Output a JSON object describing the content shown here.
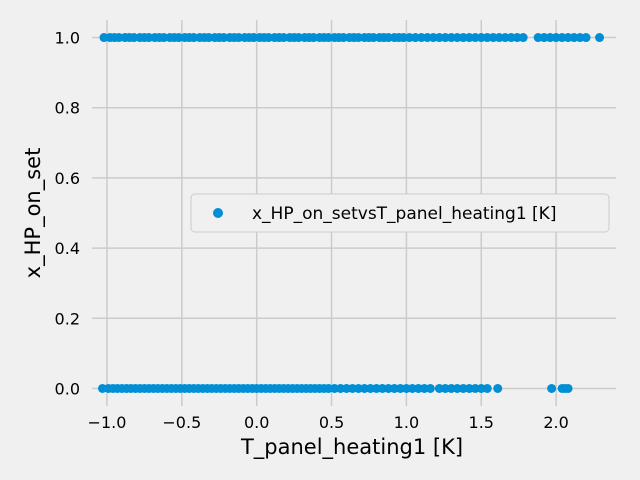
{
  "chart_data": {
    "type": "scatter",
    "xlabel": "T_panel_heating1 [K]",
    "ylabel": "x_HP_on_set",
    "xlim": [
      -1.1,
      2.4
    ],
    "ylim": [
      -0.05,
      1.05
    ],
    "x_ticks": [
      -1.0,
      -0.5,
      0.0,
      0.5,
      1.0,
      1.5,
      2.0
    ],
    "x_tick_labels": [
      "−1.0",
      "−0.5",
      "0.0",
      "0.5",
      "1.0",
      "1.5",
      "2.0"
    ],
    "y_ticks": [
      0.0,
      0.2,
      0.4,
      0.6,
      0.8,
      1.0
    ],
    "y_tick_labels": [
      "0.0",
      "0.2",
      "0.4",
      "0.6",
      "0.8",
      "1.0"
    ],
    "grid": true,
    "legend_position": "center-right",
    "series": [
      {
        "name": "x_HP_on_setvsT_panel_heating1 [K]",
        "color": "#008fd5",
        "points": [
          {
            "x": -1.02,
            "y": 1
          },
          {
            "x": -0.98,
            "y": 1
          },
          {
            "x": -0.95,
            "y": 1
          },
          {
            "x": -0.92,
            "y": 1
          },
          {
            "x": -0.88,
            "y": 1
          },
          {
            "x": -0.85,
            "y": 1
          },
          {
            "x": -0.82,
            "y": 1
          },
          {
            "x": -0.78,
            "y": 1
          },
          {
            "x": -0.75,
            "y": 1
          },
          {
            "x": -0.72,
            "y": 1
          },
          {
            "x": -0.68,
            "y": 1
          },
          {
            "x": -0.65,
            "y": 1
          },
          {
            "x": -0.62,
            "y": 1
          },
          {
            "x": -0.58,
            "y": 1
          },
          {
            "x": -0.55,
            "y": 1
          },
          {
            "x": -0.52,
            "y": 1
          },
          {
            "x": -0.48,
            "y": 1
          },
          {
            "x": -0.45,
            "y": 1
          },
          {
            "x": -0.42,
            "y": 1
          },
          {
            "x": -0.38,
            "y": 1
          },
          {
            "x": -0.35,
            "y": 1
          },
          {
            "x": -0.32,
            "y": 1
          },
          {
            "x": -0.28,
            "y": 1
          },
          {
            "x": -0.25,
            "y": 1
          },
          {
            "x": -0.22,
            "y": 1
          },
          {
            "x": -0.18,
            "y": 1
          },
          {
            "x": -0.15,
            "y": 1
          },
          {
            "x": -0.12,
            "y": 1
          },
          {
            "x": -0.08,
            "y": 1
          },
          {
            "x": -0.05,
            "y": 1
          },
          {
            "x": -0.02,
            "y": 1
          },
          {
            "x": 0.02,
            "y": 1
          },
          {
            "x": 0.05,
            "y": 1
          },
          {
            "x": 0.08,
            "y": 1
          },
          {
            "x": 0.12,
            "y": 1
          },
          {
            "x": 0.15,
            "y": 1
          },
          {
            "x": 0.18,
            "y": 1
          },
          {
            "x": 0.22,
            "y": 1
          },
          {
            "x": 0.25,
            "y": 1
          },
          {
            "x": 0.28,
            "y": 1
          },
          {
            "x": 0.32,
            "y": 1
          },
          {
            "x": 0.35,
            "y": 1
          },
          {
            "x": 0.38,
            "y": 1
          },
          {
            "x": 0.42,
            "y": 1
          },
          {
            "x": 0.45,
            "y": 1
          },
          {
            "x": 0.48,
            "y": 1
          },
          {
            "x": 0.52,
            "y": 1
          },
          {
            "x": 0.55,
            "y": 1
          },
          {
            "x": 0.58,
            "y": 1
          },
          {
            "x": 0.62,
            "y": 1
          },
          {
            "x": 0.65,
            "y": 1
          },
          {
            "x": 0.68,
            "y": 1
          },
          {
            "x": 0.72,
            "y": 1
          },
          {
            "x": 0.75,
            "y": 1
          },
          {
            "x": 0.78,
            "y": 1
          },
          {
            "x": 0.82,
            "y": 1
          },
          {
            "x": 0.85,
            "y": 1
          },
          {
            "x": 0.88,
            "y": 1
          },
          {
            "x": 0.92,
            "y": 1
          },
          {
            "x": 0.95,
            "y": 1
          },
          {
            "x": 0.98,
            "y": 1
          },
          {
            "x": 1.02,
            "y": 1
          },
          {
            "x": 1.06,
            "y": 1
          },
          {
            "x": 1.1,
            "y": 1
          },
          {
            "x": 1.14,
            "y": 1
          },
          {
            "x": 1.18,
            "y": 1
          },
          {
            "x": 1.22,
            "y": 1
          },
          {
            "x": 1.26,
            "y": 1
          },
          {
            "x": 1.3,
            "y": 1
          },
          {
            "x": 1.34,
            "y": 1
          },
          {
            "x": 1.38,
            "y": 1
          },
          {
            "x": 1.42,
            "y": 1
          },
          {
            "x": 1.46,
            "y": 1
          },
          {
            "x": 1.5,
            "y": 1
          },
          {
            "x": 1.54,
            "y": 1
          },
          {
            "x": 1.58,
            "y": 1
          },
          {
            "x": 1.62,
            "y": 1
          },
          {
            "x": 1.66,
            "y": 1
          },
          {
            "x": 1.7,
            "y": 1
          },
          {
            "x": 1.74,
            "y": 1
          },
          {
            "x": 1.78,
            "y": 1
          },
          {
            "x": 1.88,
            "y": 1
          },
          {
            "x": 1.92,
            "y": 1
          },
          {
            "x": 1.96,
            "y": 1
          },
          {
            "x": 2.0,
            "y": 1
          },
          {
            "x": 2.04,
            "y": 1
          },
          {
            "x": 2.08,
            "y": 1
          },
          {
            "x": 2.12,
            "y": 1
          },
          {
            "x": 2.16,
            "y": 1
          },
          {
            "x": 2.2,
            "y": 1
          },
          {
            "x": 2.29,
            "y": 1
          },
          {
            "x": -1.03,
            "y": 0
          },
          {
            "x": -0.99,
            "y": 0
          },
          {
            "x": -0.96,
            "y": 0
          },
          {
            "x": -0.93,
            "y": 0
          },
          {
            "x": -0.9,
            "y": 0
          },
          {
            "x": -0.87,
            "y": 0
          },
          {
            "x": -0.84,
            "y": 0
          },
          {
            "x": -0.81,
            "y": 0
          },
          {
            "x": -0.78,
            "y": 0
          },
          {
            "x": -0.75,
            "y": 0
          },
          {
            "x": -0.72,
            "y": 0
          },
          {
            "x": -0.69,
            "y": 0
          },
          {
            "x": -0.66,
            "y": 0
          },
          {
            "x": -0.63,
            "y": 0
          },
          {
            "x": -0.6,
            "y": 0
          },
          {
            "x": -0.57,
            "y": 0
          },
          {
            "x": -0.54,
            "y": 0
          },
          {
            "x": -0.51,
            "y": 0
          },
          {
            "x": -0.48,
            "y": 0
          },
          {
            "x": -0.45,
            "y": 0
          },
          {
            "x": -0.42,
            "y": 0
          },
          {
            "x": -0.39,
            "y": 0
          },
          {
            "x": -0.36,
            "y": 0
          },
          {
            "x": -0.33,
            "y": 0
          },
          {
            "x": -0.3,
            "y": 0
          },
          {
            "x": -0.27,
            "y": 0
          },
          {
            "x": -0.24,
            "y": 0
          },
          {
            "x": -0.21,
            "y": 0
          },
          {
            "x": -0.18,
            "y": 0
          },
          {
            "x": -0.15,
            "y": 0
          },
          {
            "x": -0.12,
            "y": 0
          },
          {
            "x": -0.09,
            "y": 0
          },
          {
            "x": -0.06,
            "y": 0
          },
          {
            "x": -0.03,
            "y": 0
          },
          {
            "x": 0.0,
            "y": 0
          },
          {
            "x": 0.03,
            "y": 0
          },
          {
            "x": 0.06,
            "y": 0
          },
          {
            "x": 0.09,
            "y": 0
          },
          {
            "x": 0.12,
            "y": 0
          },
          {
            "x": 0.15,
            "y": 0
          },
          {
            "x": 0.18,
            "y": 0
          },
          {
            "x": 0.21,
            "y": 0
          },
          {
            "x": 0.24,
            "y": 0
          },
          {
            "x": 0.27,
            "y": 0
          },
          {
            "x": 0.3,
            "y": 0
          },
          {
            "x": 0.33,
            "y": 0
          },
          {
            "x": 0.36,
            "y": 0
          },
          {
            "x": 0.39,
            "y": 0
          },
          {
            "x": 0.42,
            "y": 0
          },
          {
            "x": 0.45,
            "y": 0
          },
          {
            "x": 0.48,
            "y": 0
          },
          {
            "x": 0.52,
            "y": 0
          },
          {
            "x": 0.56,
            "y": 0
          },
          {
            "x": 0.6,
            "y": 0
          },
          {
            "x": 0.64,
            "y": 0
          },
          {
            "x": 0.68,
            "y": 0
          },
          {
            "x": 0.72,
            "y": 0
          },
          {
            "x": 0.76,
            "y": 0
          },
          {
            "x": 0.8,
            "y": 0
          },
          {
            "x": 0.84,
            "y": 0
          },
          {
            "x": 0.88,
            "y": 0
          },
          {
            "x": 0.92,
            "y": 0
          },
          {
            "x": 0.96,
            "y": 0
          },
          {
            "x": 1.0,
            "y": 0
          },
          {
            "x": 1.04,
            "y": 0
          },
          {
            "x": 1.08,
            "y": 0
          },
          {
            "x": 1.12,
            "y": 0
          },
          {
            "x": 1.16,
            "y": 0
          },
          {
            "x": 1.22,
            "y": 0
          },
          {
            "x": 1.26,
            "y": 0
          },
          {
            "x": 1.3,
            "y": 0
          },
          {
            "x": 1.34,
            "y": 0
          },
          {
            "x": 1.38,
            "y": 0
          },
          {
            "x": 1.42,
            "y": 0
          },
          {
            "x": 1.46,
            "y": 0
          },
          {
            "x": 1.5,
            "y": 0
          },
          {
            "x": 1.54,
            "y": 0
          },
          {
            "x": 1.61,
            "y": 0
          },
          {
            "x": 1.97,
            "y": 0
          },
          {
            "x": 2.04,
            "y": 0
          },
          {
            "x": 2.06,
            "y": 0
          },
          {
            "x": 2.08,
            "y": 0
          }
        ]
      }
    ]
  }
}
